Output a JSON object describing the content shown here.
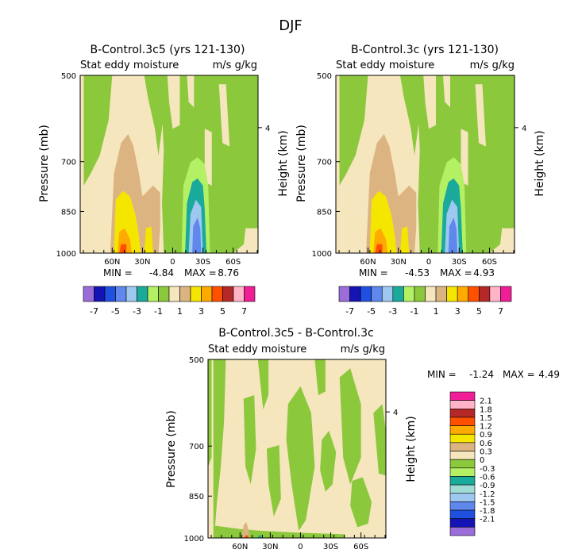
{
  "figure_title": "DJF",
  "colors": {
    "purple": "#9a6ddb",
    "darkblue": "#1414b4",
    "blue": "#2050e0",
    "medblue": "#5f87ec",
    "lightblue": "#9ec8f0",
    "teal": "#1aaa9c",
    "lightteal": "#a0dcd6",
    "lightgreen": "#b4f064",
    "green": "#8cc83c",
    "cream": "#f5e6be",
    "tan": "#dcb482",
    "yellow": "#f5e600",
    "orange": "#ffaa00",
    "redorange": "#ff5000",
    "darkred": "#b42828",
    "pink": "#ffb4c8",
    "magenta": "#f01e96"
  },
  "chart_data": [
    {
      "type": "contour",
      "title": "B-Control.3c5 (yrs 121-130)",
      "subtitle_left": "Stat eddy moisture",
      "subtitle_right": "m/s g/kg",
      "ylabel": "Pressure (mb)",
      "ylabel_right": "Height (km)",
      "y_ticks": [
        "500",
        "700",
        "850",
        "1000"
      ],
      "y_right_ticks": [
        "4"
      ],
      "x_ticks": [
        "60N",
        "30N",
        "0",
        "30S",
        "60S"
      ],
      "stats": {
        "min_label": "MIN =",
        "min": "-4.84",
        "max_label": "MAX =",
        "max": "8.76"
      }
    },
    {
      "type": "contour",
      "title": "B-Control.3c (yrs 121-130)",
      "subtitle_left": "Stat eddy moisture",
      "subtitle_right": "m/s g/kg",
      "ylabel": "Pressure (mb)",
      "ylabel_right": "Height (km)",
      "y_ticks": [
        "500",
        "700",
        "850",
        "1000"
      ],
      "y_right_ticks": [
        "4"
      ],
      "x_ticks": [
        "60N",
        "30N",
        "0",
        "30S",
        "60S"
      ],
      "stats": {
        "min_label": "MIN =",
        "min": "-4.53",
        "max_label": "MAX =",
        "max": "4.93"
      }
    },
    {
      "type": "contour",
      "title": "B-Control.3c5 - B-Control.3c",
      "subtitle_left": "Stat eddy moisture",
      "subtitle_right": "m/s g/kg",
      "ylabel": "Pressure (mb)",
      "ylabel_right": "Height (km)",
      "y_ticks": [
        "500",
        "700",
        "850",
        "1000"
      ],
      "y_right_ticks": [
        "4"
      ],
      "x_ticks": [
        "60N",
        "30N",
        "0",
        "30S",
        "60S"
      ],
      "stats": {
        "min_label": "MIN =",
        "min": "-1.24",
        "max_label": "MAX =",
        "max": "4.49"
      }
    }
  ],
  "colorbar_top": {
    "labels": [
      "-7",
      "-5",
      "-3",
      "-1",
      "1",
      "3",
      "5",
      "7"
    ],
    "colors": [
      "#9a6ddb",
      "#1414b4",
      "#2050e0",
      "#5f87ec",
      "#9ec8f0",
      "#1aaa9c",
      "#b4f064",
      "#8cc83c",
      "#f5e6be",
      "#dcb482",
      "#f5e600",
      "#ffaa00",
      "#ff5000",
      "#b42828",
      "#ffb4c8",
      "#f01e96"
    ]
  },
  "colorbar_diff": {
    "labels": [
      "2.1",
      "1.8",
      "1.5",
      "1.2",
      "0.9",
      "0.6",
      "0.3",
      "0",
      "-0.3",
      "-0.6",
      "-0.9",
      "-1.2",
      "-1.5",
      "-1.8",
      "-2.1"
    ],
    "colors": [
      "#f01e96",
      "#ffb4c8",
      "#b42828",
      "#ff5000",
      "#ffaa00",
      "#f5e600",
      "#dcb482",
      "#f5e6be",
      "#8cc83c",
      "#b4f064",
      "#1aaa9c",
      "#a0dcd6",
      "#9ec8f0",
      "#5f87ec",
      "#2050e0",
      "#1414b4",
      "#9a6ddb"
    ]
  }
}
